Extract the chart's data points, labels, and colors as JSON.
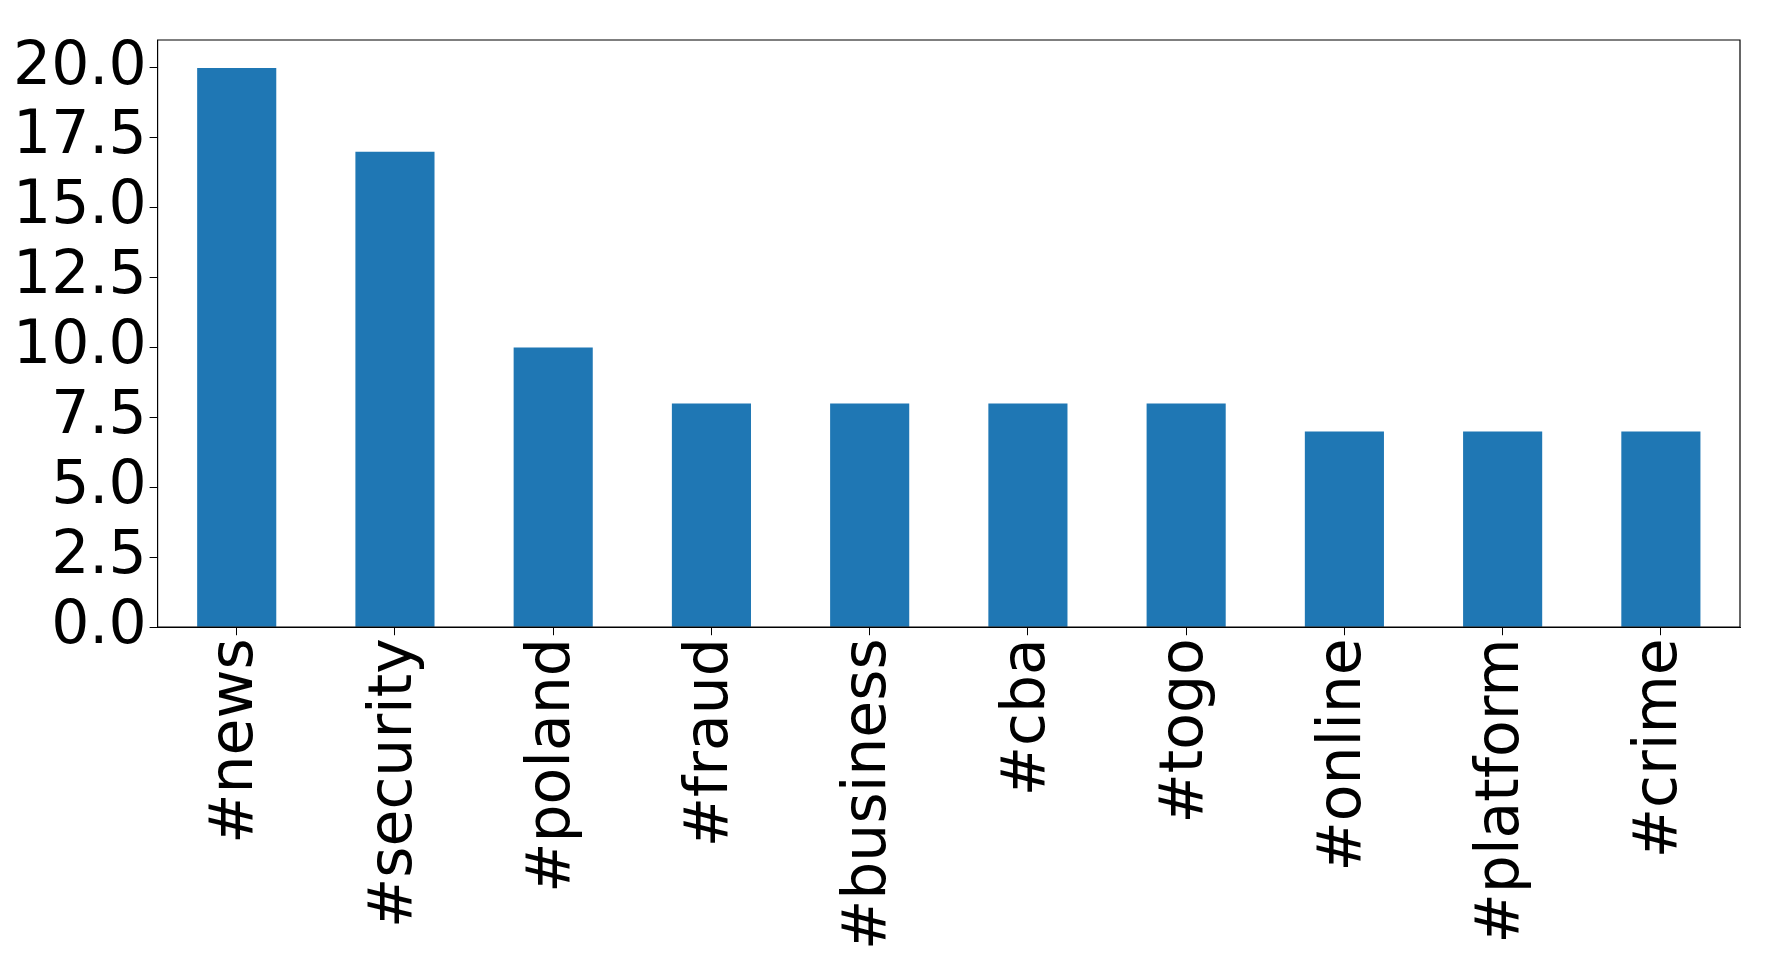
{
  "chart_data": {
    "type": "bar",
    "categories": [
      "#news",
      "#security",
      "#poland",
      "#fraud",
      "#business",
      "#cba",
      "#togo",
      "#online",
      "#platform",
      "#crime"
    ],
    "values": [
      20,
      17,
      10,
      8,
      8,
      8,
      8,
      7,
      7,
      7
    ],
    "color": "#1f77b4",
    "ylim": [
      0,
      21
    ],
    "yticks": [
      {
        "value": 0,
        "label": "0.0"
      },
      2.5,
      {
        "value": 5,
        "label": "5.0"
      },
      7.5,
      {
        "value": 10,
        "label": "10.0"
      },
      12.5,
      {
        "value": 15,
        "label": "15.0"
      },
      17.5,
      {
        "value": 20,
        "label": "20.0"
      }
    ],
    "grid": false,
    "legend": false
  }
}
